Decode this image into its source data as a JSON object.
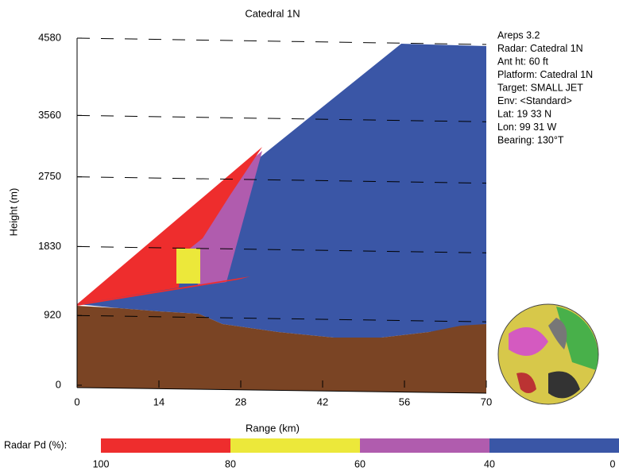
{
  "chart_data": {
    "type": "coverage",
    "title": "Catedral 1N",
    "x_label": "Range (km)",
    "y_label": "Height (m)",
    "xlim": [
      0,
      70
    ],
    "xticks": [
      0,
      14,
      28,
      42,
      56,
      70
    ],
    "ylim": [
      0,
      4580
    ],
    "yticks": [
      0,
      920,
      1830,
      2750,
      3560,
      4580
    ],
    "grid": true,
    "info": [
      "Areps 3.2",
      "Radar: Catedral 1N",
      "Ant ht: 60 ft",
      "Platform: Catedral 1N",
      "Target: SMALL JET",
      "Env: <Standard>",
      "Lat: 19 33 N",
      "Lon: 99 31 W",
      "Bearing: 130°T"
    ],
    "colorbar": {
      "label": "Radar Pd (%):",
      "stops": [
        100,
        80,
        60,
        40,
        0
      ],
      "colors": [
        "#ee2d2d",
        "#ece83a",
        "#b05cae",
        "#3a56a6"
      ]
    }
  }
}
